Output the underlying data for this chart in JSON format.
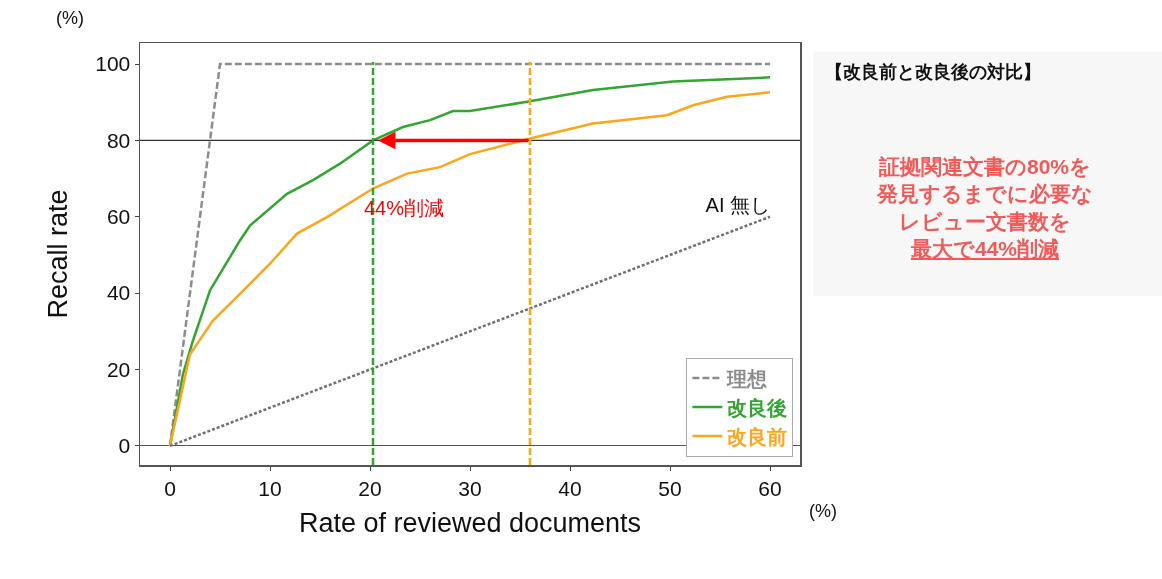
{
  "chart_data": {
    "type": "line",
    "xlabel": "Rate of reviewed documents",
    "ylabel": "Recall rate",
    "xlim": [
      -3,
      63
    ],
    "xticks": [
      0,
      10,
      20,
      30,
      40,
      50,
      60
    ],
    "ylim": [
      -5,
      105.5
    ],
    "yticks": [
      0,
      20,
      40,
      60,
      80,
      100
    ],
    "grid": false,
    "legend": "bottom right",
    "marker": "none",
    "series": [
      {
        "name": "理想",
        "color": "#8c8c8c",
        "line_style": "dashed",
        "x": [
          0,
          5,
          60
        ],
        "values": [
          0,
          100,
          100
        ]
      },
      {
        "name": "改良後",
        "color": "#33a532",
        "line_style": "solid",
        "x": [
          0,
          1.3,
          2.3,
          4,
          7,
          8,
          11.7,
          14.3,
          17,
          20.3,
          23.3,
          26,
          28.3,
          30,
          35.7,
          42.3,
          50.3,
          60
        ],
        "values": [
          0,
          18.8,
          27.6,
          40.7,
          53.8,
          57.7,
          66,
          69.6,
          73.9,
          80,
          83.5,
          85.3,
          87.7,
          87.7,
          90.1,
          93.2,
          95.4,
          96.5
        ]
      },
      {
        "name": "改良前",
        "color": "#fba61c",
        "line_style": "solid",
        "x": [
          0,
          2,
          4.3,
          7,
          10,
          12.7,
          15.7,
          20.3,
          23.7,
          27,
          30,
          36,
          42.3,
          49.7,
          52.3,
          55.7,
          60
        ],
        "values": [
          0,
          24,
          32.8,
          39.8,
          47.7,
          55.6,
          59.9,
          67.4,
          71.3,
          73,
          76.4,
          80.5,
          84.4,
          86.6,
          89.2,
          91.4,
          92.6
        ]
      },
      {
        "name": "AI 無し",
        "color": "#707070",
        "line_style": "dotted",
        "x": [
          0,
          60
        ],
        "values": [
          0,
          60
        ]
      }
    ],
    "ref_lines": [
      {
        "axis": "y",
        "value": 80,
        "color": "#333333",
        "line_style": "solid"
      },
      {
        "axis": "x",
        "value": 20.3,
        "color": "#33a532",
        "line_style": "dashed"
      },
      {
        "axis": "x",
        "value": 36,
        "color": "#fba61c",
        "line_style": "dashed"
      }
    ],
    "annotations": [
      "(%)",
      "(%)",
      "【改良前と改良後の対比】",
      "証拠関連文書の80%を",
      "発見するまでに必要な",
      "レビュー文書数を",
      "最大で44%削減",
      "44%削減"
    ]
  }
}
